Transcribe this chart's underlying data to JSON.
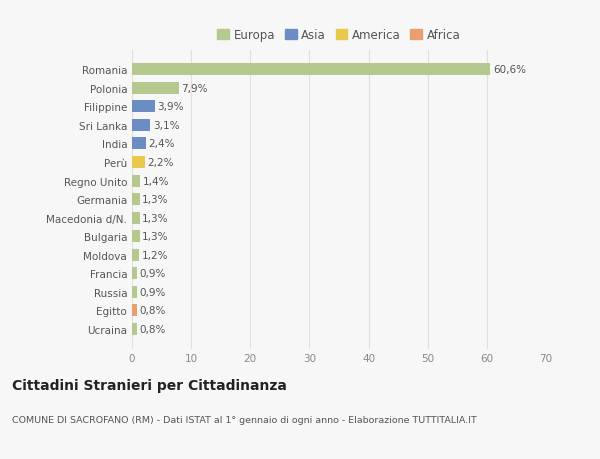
{
  "categories": [
    "Romania",
    "Polonia",
    "Filippine",
    "Sri Lanka",
    "India",
    "Perù",
    "Regno Unito",
    "Germania",
    "Macedonia d/N.",
    "Bulgaria",
    "Moldova",
    "Francia",
    "Russia",
    "Egitto",
    "Ucraina"
  ],
  "values": [
    60.6,
    7.9,
    3.9,
    3.1,
    2.4,
    2.2,
    1.4,
    1.3,
    1.3,
    1.3,
    1.2,
    0.9,
    0.9,
    0.8,
    0.8
  ],
  "labels": [
    "60,6%",
    "7,9%",
    "3,9%",
    "3,1%",
    "2,4%",
    "2,2%",
    "1,4%",
    "1,3%",
    "1,3%",
    "1,3%",
    "1,2%",
    "0,9%",
    "0,9%",
    "0,8%",
    "0,8%"
  ],
  "colors": [
    "#b5c98e",
    "#b5c98e",
    "#6b8dc4",
    "#6b8dc4",
    "#6b8dc4",
    "#e8c94e",
    "#b5c98e",
    "#b5c98e",
    "#b5c98e",
    "#b5c98e",
    "#b5c98e",
    "#b5c98e",
    "#b5c98e",
    "#e8a070",
    "#b5c98e"
  ],
  "legend_labels": [
    "Europa",
    "Asia",
    "America",
    "Africa"
  ],
  "legend_colors": [
    "#b5c98e",
    "#6b8dc4",
    "#e8c94e",
    "#e8a070"
  ],
  "title": "Cittadini Stranieri per Cittadinanza",
  "subtitle": "COMUNE DI SACROFANO (RM) - Dati ISTAT al 1° gennaio di ogni anno - Elaborazione TUTTITALIA.IT",
  "xlim": [
    0,
    70
  ],
  "xticks": [
    0,
    10,
    20,
    30,
    40,
    50,
    60,
    70
  ],
  "background_color": "#f7f7f7",
  "grid_color": "#e0e0e0",
  "bar_height": 0.65,
  "label_fontsize": 7.5,
  "tick_fontsize": 7.5,
  "legend_fontsize": 8.5,
  "title_fontsize": 10,
  "subtitle_fontsize": 6.8
}
